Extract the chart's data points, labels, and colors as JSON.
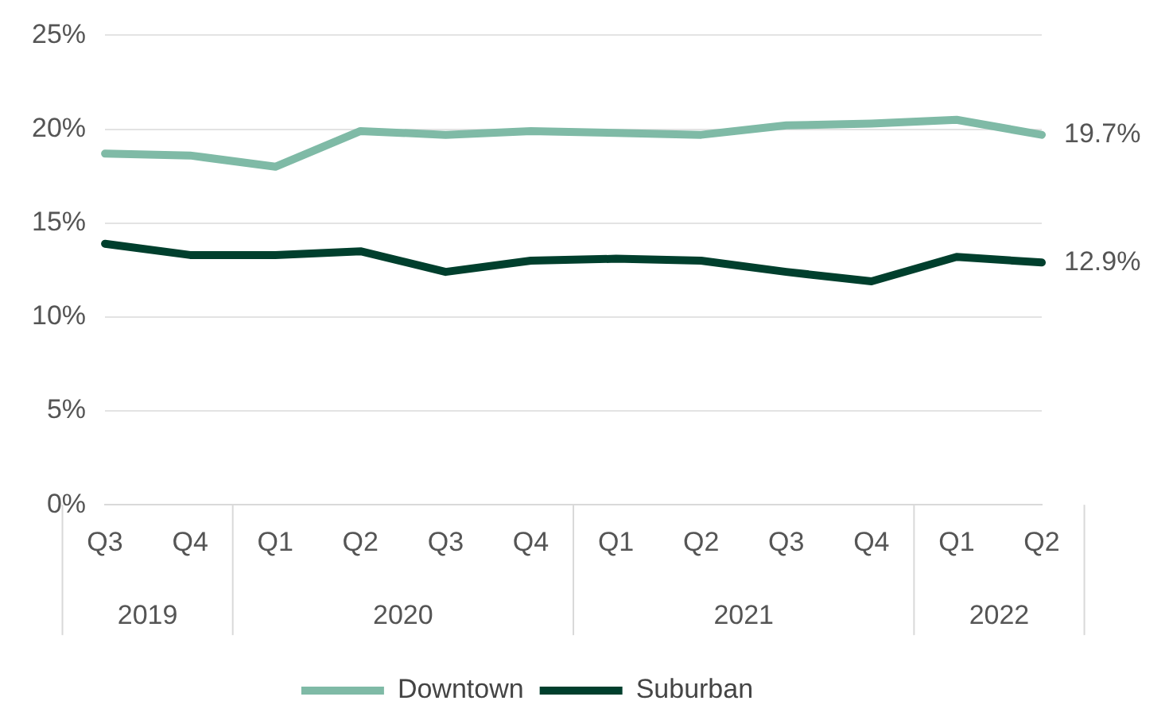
{
  "chart_data": {
    "type": "line",
    "categories": [
      "Q3",
      "Q4",
      "Q1",
      "Q2",
      "Q3",
      "Q4",
      "Q1",
      "Q2",
      "Q3",
      "Q4",
      "Q1",
      "Q2"
    ],
    "series": [
      {
        "name": "Downtown",
        "color": "#7fbaa6",
        "values": [
          18.7,
          18.6,
          18.0,
          19.9,
          19.7,
          19.9,
          19.8,
          19.7,
          20.2,
          20.3,
          20.5,
          19.7
        ],
        "value_labels": [
          null,
          null,
          null,
          null,
          null,
          null,
          null,
          null,
          null,
          null,
          null,
          "19.7%"
        ]
      },
      {
        "name": "Suburban",
        "color": "#003f2d",
        "values": [
          13.9,
          13.3,
          13.3,
          13.5,
          12.4,
          13.0,
          13.1,
          13.0,
          12.4,
          11.9,
          13.2,
          12.9
        ],
        "value_labels": [
          null,
          null,
          null,
          null,
          null,
          null,
          null,
          null,
          null,
          null,
          null,
          "12.9%"
        ]
      }
    ],
    "annotations": [
      "2019",
      "2020",
      "2021",
      "2022"
    ],
    "ylim": [
      0,
      25
    ],
    "yticks": [
      {
        "value": 0,
        "label": "0%"
      },
      {
        "value": 5,
        "label": "5%"
      },
      {
        "value": 10,
        "label": "10%"
      },
      {
        "value": 15,
        "label": "15%"
      },
      {
        "value": 20,
        "label": "20%"
      },
      {
        "value": 25,
        "label": "25%"
      }
    ],
    "grid": "y",
    "legend": "bottom",
    "marker": "none",
    "line_style": "solid"
  }
}
